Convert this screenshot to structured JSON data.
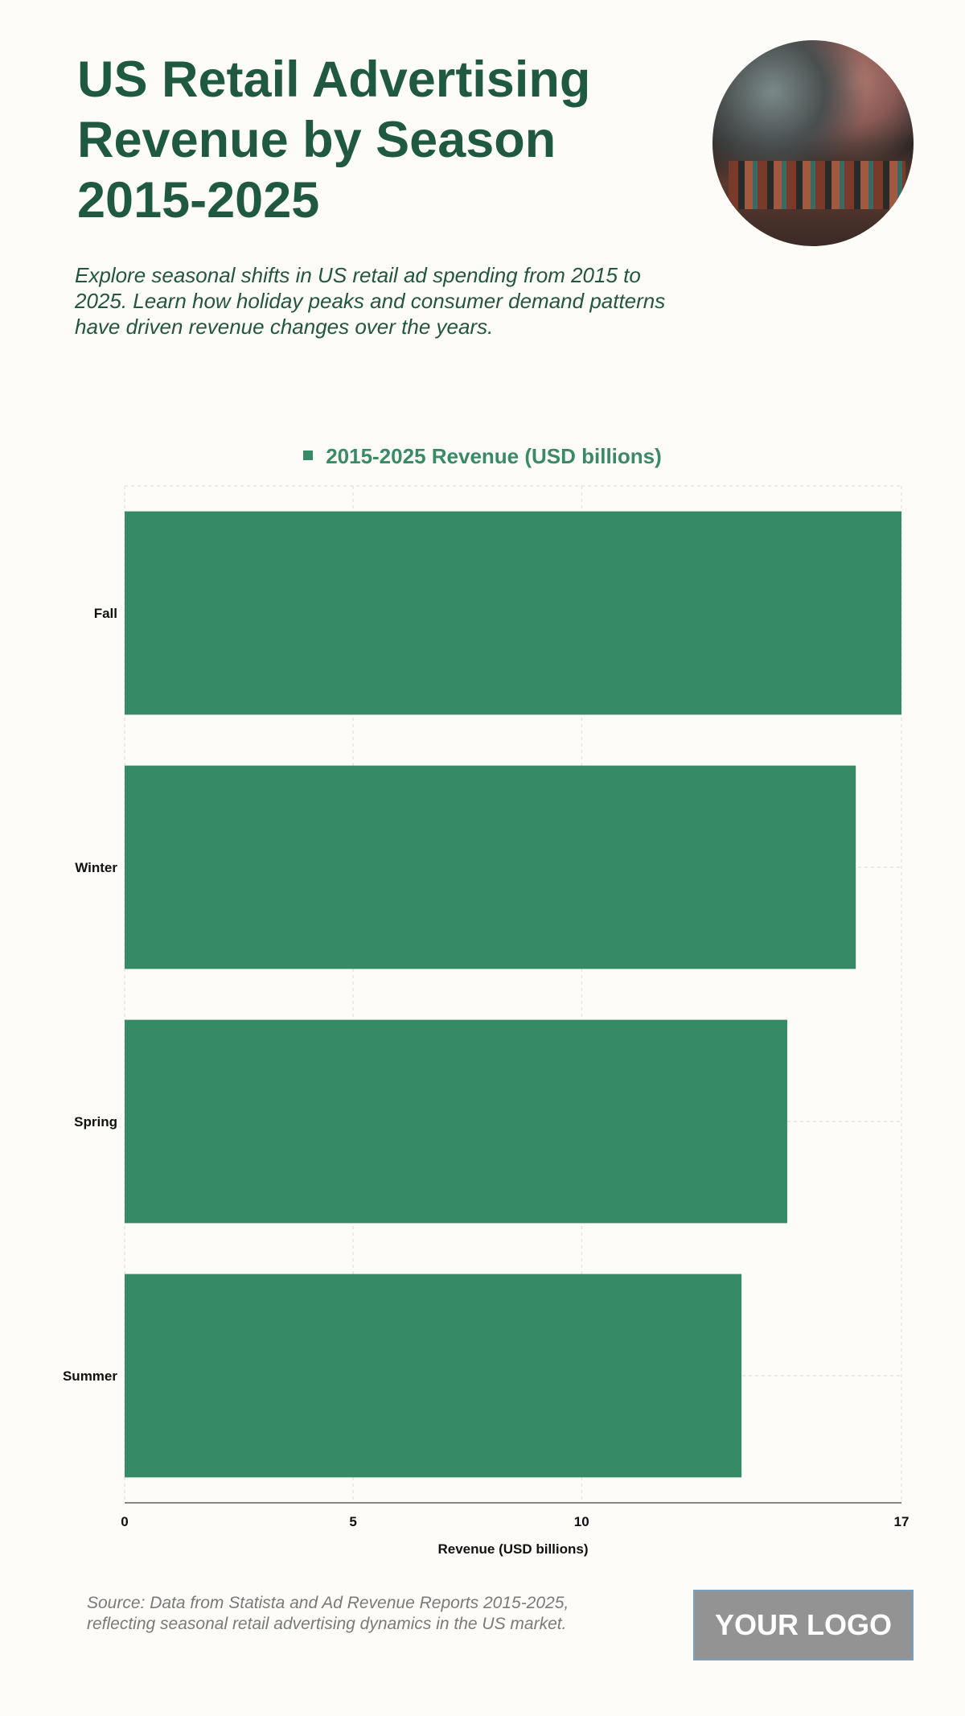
{
  "header": {
    "title": "US Retail Advertising Revenue by Season 2015-2025",
    "subtitle": "Explore seasonal shifts in US retail ad spending from 2015 to 2025. Learn how holiday peaks and consumer demand patterns have driven revenue changes over the years."
  },
  "footer": {
    "source": "Source: Data from Statista and Ad Revenue Reports 2015-2025, reflecting seasonal retail advertising dynamics in the US market.",
    "logo": "YOUR LOGO"
  },
  "chart_data": {
    "type": "bar",
    "orientation": "horizontal",
    "categories": [
      "Fall",
      "Winter",
      "Spring",
      "Summer"
    ],
    "series": [
      {
        "name": "2015-2025 Revenue (USD billions)",
        "values": [
          17,
          16,
          14.5,
          13.5
        ],
        "color": "#378a66"
      }
    ],
    "xlabel": "Revenue (USD billions)",
    "ylabel": "",
    "xlim": [
      0,
      17
    ],
    "xticks": [
      0,
      5,
      10,
      17
    ],
    "grid": true,
    "legend": "top-center"
  }
}
